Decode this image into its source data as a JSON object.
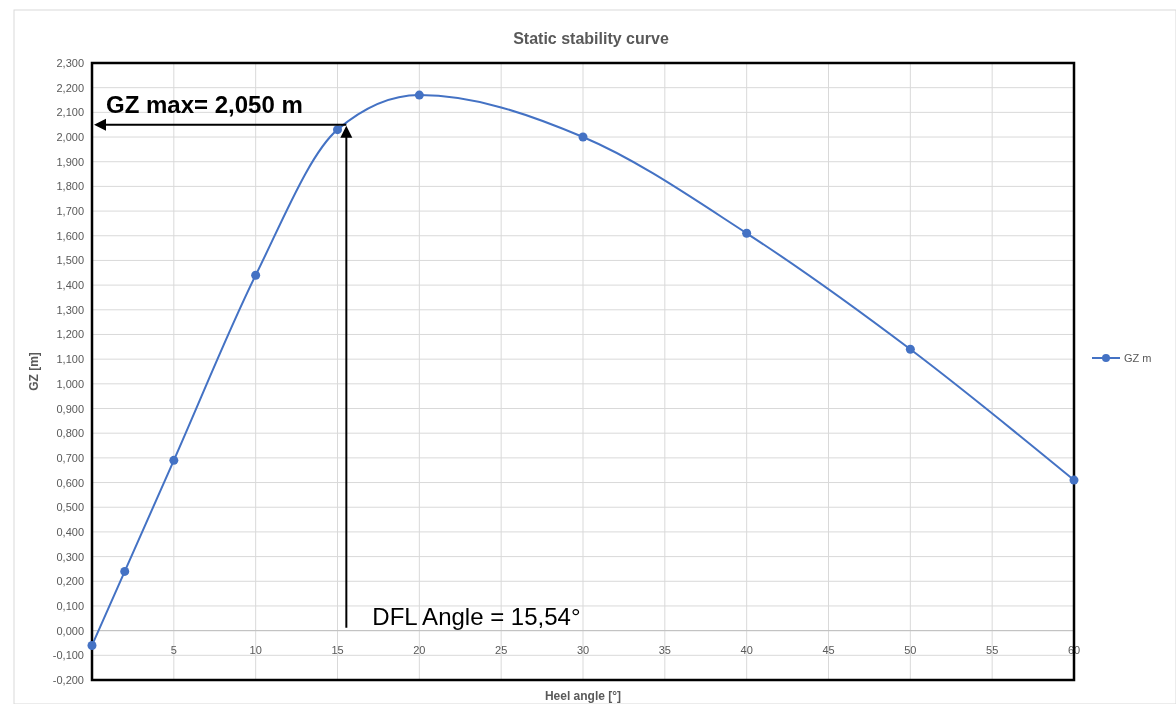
{
  "chart_data": {
    "type": "line",
    "title": "Static stability curve",
    "xlabel": "Heel angle [°]",
    "ylabel": "GZ [m]",
    "x": [
      0,
      2,
      5,
      10,
      15,
      20,
      30,
      40,
      50,
      60
    ],
    "series": [
      {
        "name": "GZ m",
        "color": "#4472c4",
        "values": [
          -0.06,
          0.24,
          0.69,
          1.44,
          2.03,
          2.17,
          2.0,
          1.61,
          1.14,
          0.61
        ]
      }
    ],
    "xlim": [
      0,
      60
    ],
    "xticks": [
      {
        "value": 0,
        "label": null
      },
      5,
      10,
      15,
      20,
      25,
      30,
      35,
      40,
      45,
      50,
      55,
      60
    ],
    "ylim": [
      -0.2,
      2.3
    ],
    "yticks": [
      {
        "value": -0.2,
        "label": "-0,200"
      },
      {
        "value": -0.1,
        "label": "-0,100"
      },
      {
        "value": 0,
        "label": "0,000"
      },
      {
        "value": 0.1,
        "label": "0,100"
      },
      {
        "value": 0.2,
        "label": "0,200"
      },
      {
        "value": 0.3,
        "label": "0,300"
      },
      {
        "value": 0.4,
        "label": "0,400"
      },
      {
        "value": 0.5,
        "label": "0,500"
      },
      {
        "value": 0.6,
        "label": "0,600"
      },
      {
        "value": 0.7,
        "label": "0,700"
      },
      {
        "value": 0.8,
        "label": "0,800"
      },
      {
        "value": 0.9,
        "label": "0,900"
      },
      {
        "value": 1.0,
        "label": "1,000"
      },
      {
        "value": 1.1,
        "label": "1,100"
      },
      {
        "value": 1.2,
        "label": "1,200"
      },
      {
        "value": 1.3,
        "label": "1,300"
      },
      {
        "value": 1.4,
        "label": "1,400"
      },
      {
        "value": 1.5,
        "label": "1,500"
      },
      {
        "value": 1.6,
        "label": "1,600"
      },
      {
        "value": 1.7,
        "label": "1,700"
      },
      {
        "value": 1.8,
        "label": "1,800"
      },
      {
        "value": 1.9,
        "label": "1,900"
      },
      {
        "value": 2.0,
        "label": "2,000"
      },
      {
        "value": 2.1,
        "label": "2,100"
      },
      {
        "value": 2.2,
        "label": "2,200"
      },
      {
        "value": 2.3,
        "label": "2,300"
      }
    ],
    "grid": true,
    "legend": "right",
    "marker": "circle",
    "line_style": "solid",
    "annotations": [
      {
        "text": "GZ max= 2,050 m",
        "x": 15.54,
        "y": 2.05
      },
      "DFL Angle = 15,54°"
    ]
  }
}
